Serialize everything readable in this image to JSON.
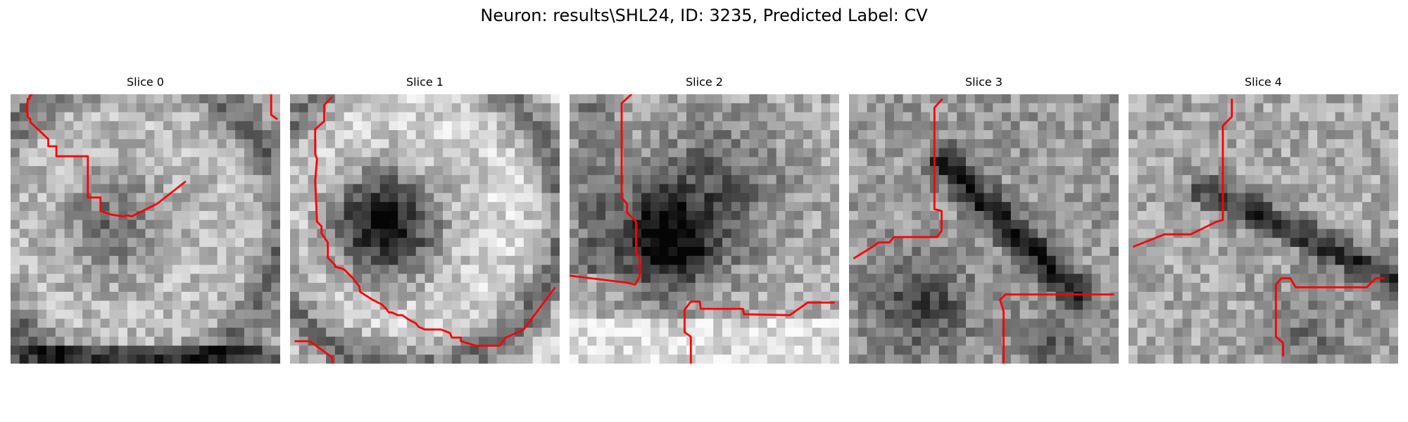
{
  "figure": {
    "title": "Neuron: results\\SHL24, ID: 3235, Predicted Label: CV"
  },
  "contour_color": "#ff0000",
  "slices": [
    {
      "title": "Slice 0",
      "description": "grayscale EM patch with a ring-shaped membrane around a dark nucleus; red contour outlines left and bottom"
    },
    {
      "title": "Slice 1",
      "description": "grayscale EM patch with a bright ring around a very dark center; red contour along left and bottom"
    },
    {
      "title": "Slice 2",
      "description": "grayscale EM patch with a dark irregular blob in the middle; red segmentation lines"
    },
    {
      "title": "Slice 3",
      "description": "noisy grayscale EM patch with a dark diagonal membrane; red boundary segments"
    },
    {
      "title": "Slice 4",
      "description": "noisy grayscale EM patch with a dark diagonal membrane at top right; red boundary segments"
    }
  ]
}
